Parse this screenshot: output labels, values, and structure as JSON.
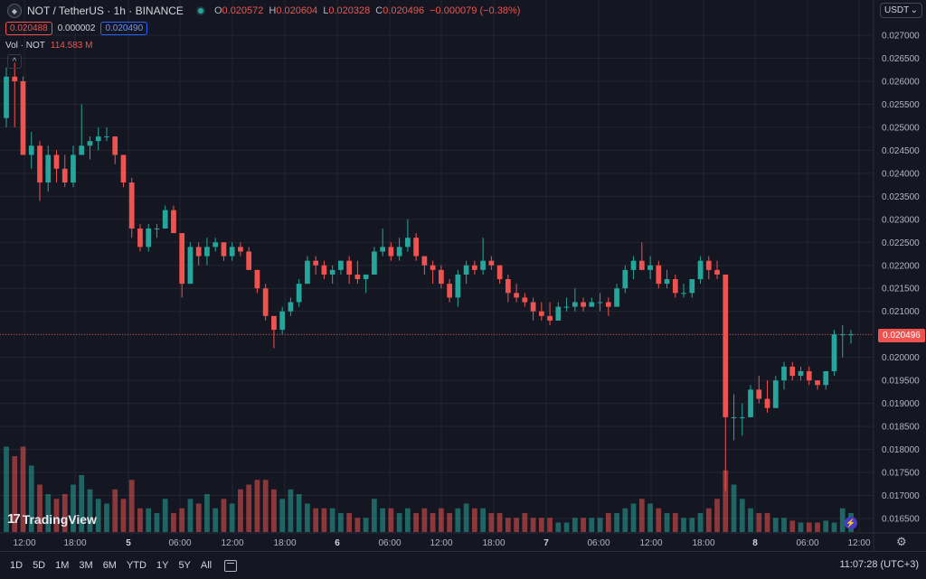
{
  "header": {
    "symbol": "NOT / TetherUS · 1h · BINANCE",
    "ohlc": {
      "o_label": "O",
      "o": "0.020572",
      "h_label": "H",
      "h": "0.020604",
      "l_label": "L",
      "l": "0.020328",
      "c_label": "C",
      "c": "0.020496",
      "change": "−0.000079 (−0.38%)"
    },
    "sell_price": "0.020488",
    "spread": "0.000002",
    "buy_price": "0.020490",
    "volume_label": "Vol · NOT",
    "volume_value": "114.583 M",
    "collapse_glyph": "^"
  },
  "currency_selector": {
    "label": "USDT",
    "chevron": "⌄"
  },
  "last_price_tag": "0.020496",
  "brand": {
    "mark": "17",
    "name": "TradingView"
  },
  "status_icons": {
    "bolt": "⚡",
    "gear": "⚙"
  },
  "bottom_bar": {
    "ranges": [
      "1D",
      "5D",
      "1M",
      "3M",
      "6M",
      "YTD",
      "1Y",
      "5Y",
      "All"
    ],
    "clock": "11:07:28 (UTC+3)"
  },
  "chart_data": {
    "type": "candlestick",
    "colors": {
      "up": "#26a69a",
      "down": "#ef5350",
      "grid": "#22262f",
      "axis_text": "#b2b5be",
      "background": "#141722"
    },
    "y_axis": {
      "ticks": [
        "0.027000",
        "0.026500",
        "0.026000",
        "0.025500",
        "0.025000",
        "0.024500",
        "0.024000",
        "0.023500",
        "0.023000",
        "0.022500",
        "0.022000",
        "0.021500",
        "0.021000",
        "0.020500",
        "0.020000",
        "0.019500",
        "0.019000",
        "0.018500",
        "0.018000",
        "0.017500",
        "0.017000",
        "0.016500"
      ],
      "range": [
        0.0163,
        0.0273
      ]
    },
    "x_axis": {
      "labels": [
        "12:00",
        "18:00",
        "5",
        "06:00",
        "12:00",
        "18:00",
        "6",
        "06:00",
        "12:00",
        "18:00",
        "7",
        "06:00",
        "12:00",
        "18:00",
        "8",
        "06:00",
        "12:00"
      ]
    },
    "candles": [
      [
        0.0252,
        0.0263,
        0.025,
        0.0261
      ],
      [
        0.0261,
        0.0264,
        0.025,
        0.026
      ],
      [
        0.026,
        0.0261,
        0.0244,
        0.0244
      ],
      [
        0.0244,
        0.0249,
        0.0241,
        0.0246
      ],
      [
        0.0246,
        0.0247,
        0.0234,
        0.0238
      ],
      [
        0.0238,
        0.0246,
        0.0236,
        0.0244
      ],
      [
        0.0244,
        0.0245,
        0.0238,
        0.0241
      ],
      [
        0.0241,
        0.0244,
        0.0237,
        0.0238
      ],
      [
        0.0238,
        0.0246,
        0.0237,
        0.0244
      ],
      [
        0.0244,
        0.0255,
        0.0244,
        0.0246
      ],
      [
        0.0246,
        0.0248,
        0.0243,
        0.0247
      ],
      [
        0.0247,
        0.025,
        0.0245,
        0.0248
      ],
      [
        0.0248,
        0.025,
        0.0247,
        0.0248
      ],
      [
        0.0248,
        0.0248,
        0.0242,
        0.0244
      ],
      [
        0.0244,
        0.0244,
        0.0237,
        0.0238
      ],
      [
        0.0238,
        0.0239,
        0.0226,
        0.0228
      ],
      [
        0.0228,
        0.0229,
        0.0223,
        0.0224
      ],
      [
        0.0224,
        0.0229,
        0.0223,
        0.0228
      ],
      [
        0.0228,
        0.0229,
        0.0226,
        0.0228
      ],
      [
        0.0228,
        0.0233,
        0.0228,
        0.0232
      ],
      [
        0.0232,
        0.0233,
        0.0227,
        0.0227
      ],
      [
        0.0227,
        0.0227,
        0.0213,
        0.0216
      ],
      [
        0.0216,
        0.0225,
        0.0216,
        0.0224
      ],
      [
        0.0224,
        0.0225,
        0.022,
        0.0222
      ],
      [
        0.0222,
        0.0226,
        0.022,
        0.0224
      ],
      [
        0.0224,
        0.0226,
        0.0223,
        0.0225
      ],
      [
        0.0225,
        0.0225,
        0.0221,
        0.0222
      ],
      [
        0.0222,
        0.0225,
        0.0221,
        0.0224
      ],
      [
        0.0224,
        0.0225,
        0.0222,
        0.0223
      ],
      [
        0.0223,
        0.0224,
        0.0219,
        0.0219
      ],
      [
        0.0219,
        0.0219,
        0.0214,
        0.0215
      ],
      [
        0.0215,
        0.0216,
        0.0208,
        0.0209
      ],
      [
        0.0209,
        0.0209,
        0.0202,
        0.0206
      ],
      [
        0.0206,
        0.0211,
        0.0205,
        0.021
      ],
      [
        0.021,
        0.0213,
        0.0209,
        0.0212
      ],
      [
        0.0212,
        0.0217,
        0.0211,
        0.0216
      ],
      [
        0.0216,
        0.0222,
        0.0216,
        0.0221
      ],
      [
        0.0221,
        0.0222,
        0.0218,
        0.022
      ],
      [
        0.022,
        0.0221,
        0.0217,
        0.0218
      ],
      [
        0.0218,
        0.022,
        0.0216,
        0.0219
      ],
      [
        0.0219,
        0.0221,
        0.0218,
        0.0221
      ],
      [
        0.0221,
        0.0222,
        0.0216,
        0.0218
      ],
      [
        0.0218,
        0.0221,
        0.0216,
        0.0217
      ],
      [
        0.0217,
        0.0218,
        0.0214,
        0.0218
      ],
      [
        0.0218,
        0.0224,
        0.0218,
        0.0223
      ],
      [
        0.0223,
        0.0228,
        0.0222,
        0.0224
      ],
      [
        0.0224,
        0.0225,
        0.0221,
        0.0222
      ],
      [
        0.0222,
        0.0226,
        0.0221,
        0.0224
      ],
      [
        0.0224,
        0.023,
        0.0223,
        0.0226
      ],
      [
        0.0226,
        0.0227,
        0.0221,
        0.0222
      ],
      [
        0.0222,
        0.0222,
        0.0218,
        0.022
      ],
      [
        0.022,
        0.0221,
        0.0216,
        0.0219
      ],
      [
        0.0219,
        0.022,
        0.0215,
        0.0216
      ],
      [
        0.0216,
        0.0217,
        0.0212,
        0.0213
      ],
      [
        0.0213,
        0.0219,
        0.0211,
        0.0218
      ],
      [
        0.0218,
        0.0221,
        0.0216,
        0.022
      ],
      [
        0.022,
        0.0221,
        0.0218,
        0.0219
      ],
      [
        0.0219,
        0.0226,
        0.0218,
        0.0221
      ],
      [
        0.0221,
        0.0222,
        0.0219,
        0.022
      ],
      [
        0.022,
        0.022,
        0.0216,
        0.0217
      ],
      [
        0.0217,
        0.0218,
        0.0212,
        0.0214
      ],
      [
        0.0214,
        0.0216,
        0.0212,
        0.0213
      ],
      [
        0.0213,
        0.0214,
        0.0211,
        0.0212
      ],
      [
        0.0212,
        0.0213,
        0.0208,
        0.021
      ],
      [
        0.021,
        0.0212,
        0.0208,
        0.0209
      ],
      [
        0.0209,
        0.0212,
        0.0207,
        0.0208
      ],
      [
        0.0208,
        0.0212,
        0.0208,
        0.0211
      ],
      [
        0.0211,
        0.0213,
        0.021,
        0.0211
      ],
      [
        0.0211,
        0.0215,
        0.021,
        0.0212
      ],
      [
        0.0212,
        0.0213,
        0.021,
        0.0211
      ],
      [
        0.0211,
        0.0213,
        0.0211,
        0.0212
      ],
      [
        0.0212,
        0.0214,
        0.021,
        0.0212
      ],
      [
        0.0212,
        0.0213,
        0.0209,
        0.0211
      ],
      [
        0.0211,
        0.0216,
        0.0211,
        0.0215
      ],
      [
        0.0215,
        0.022,
        0.0214,
        0.0219
      ],
      [
        0.0219,
        0.0222,
        0.0217,
        0.0221
      ],
      [
        0.0221,
        0.0225,
        0.022,
        0.0219
      ],
      [
        0.0219,
        0.0222,
        0.0217,
        0.022
      ],
      [
        0.022,
        0.0221,
        0.0215,
        0.0216
      ],
      [
        0.0216,
        0.0219,
        0.0215,
        0.0217
      ],
      [
        0.0217,
        0.0218,
        0.0213,
        0.0214
      ],
      [
        0.0214,
        0.0216,
        0.0213,
        0.0214
      ],
      [
        0.0214,
        0.0217,
        0.0213,
        0.0217
      ],
      [
        0.0217,
        0.0222,
        0.0216,
        0.0221
      ],
      [
        0.0221,
        0.0222,
        0.0217,
        0.0219
      ],
      [
        0.0219,
        0.0221,
        0.0217,
        0.0218
      ],
      [
        0.0218,
        0.0218,
        0.0171,
        0.0187
      ],
      [
        0.0187,
        0.0192,
        0.0182,
        0.0187
      ],
      [
        0.0187,
        0.019,
        0.0183,
        0.0187
      ],
      [
        0.0187,
        0.0194,
        0.0187,
        0.0193
      ],
      [
        0.0193,
        0.0196,
        0.019,
        0.0191
      ],
      [
        0.0191,
        0.0195,
        0.0188,
        0.0189
      ],
      [
        0.0189,
        0.0196,
        0.0189,
        0.0195
      ],
      [
        0.0195,
        0.0199,
        0.0193,
        0.0198
      ],
      [
        0.0198,
        0.0199,
        0.0195,
        0.0196
      ],
      [
        0.0196,
        0.0198,
        0.0195,
        0.0197
      ],
      [
        0.0197,
        0.0198,
        0.0194,
        0.0195
      ],
      [
        0.0195,
        0.0195,
        0.0193,
        0.0194
      ],
      [
        0.0194,
        0.0197,
        0.0193,
        0.0197
      ],
      [
        0.0197,
        0.0206,
        0.0196,
        0.0205
      ],
      [
        0.0205,
        0.0207,
        0.02,
        0.0205
      ],
      [
        0.0205,
        0.0206,
        0.0203,
        0.0205
      ]
    ],
    "volume_relative": [
      0.9,
      0.8,
      0.9,
      0.7,
      0.5,
      0.4,
      0.35,
      0.4,
      0.5,
      0.6,
      0.45,
      0.35,
      0.3,
      0.45,
      0.35,
      0.55,
      0.25,
      0.25,
      0.2,
      0.35,
      0.2,
      0.25,
      0.35,
      0.3,
      0.4,
      0.25,
      0.35,
      0.3,
      0.45,
      0.5,
      0.55,
      0.55,
      0.45,
      0.35,
      0.45,
      0.4,
      0.3,
      0.25,
      0.25,
      0.25,
      0.2,
      0.2,
      0.15,
      0.15,
      0.35,
      0.25,
      0.25,
      0.2,
      0.25,
      0.2,
      0.25,
      0.2,
      0.25,
      0.2,
      0.25,
      0.3,
      0.25,
      0.25,
      0.2,
      0.2,
      0.15,
      0.15,
      0.2,
      0.15,
      0.15,
      0.15,
      0.1,
      0.1,
      0.15,
      0.15,
      0.15,
      0.15,
      0.2,
      0.2,
      0.25,
      0.3,
      0.35,
      0.3,
      0.25,
      0.2,
      0.2,
      0.15,
      0.15,
      0.2,
      0.25,
      0.35,
      0.65,
      0.5,
      0.35,
      0.25,
      0.2,
      0.2,
      0.15,
      0.15,
      0.12,
      0.1,
      0.1,
      0.1,
      0.12,
      0.1,
      0.25,
      0.2
    ]
  }
}
